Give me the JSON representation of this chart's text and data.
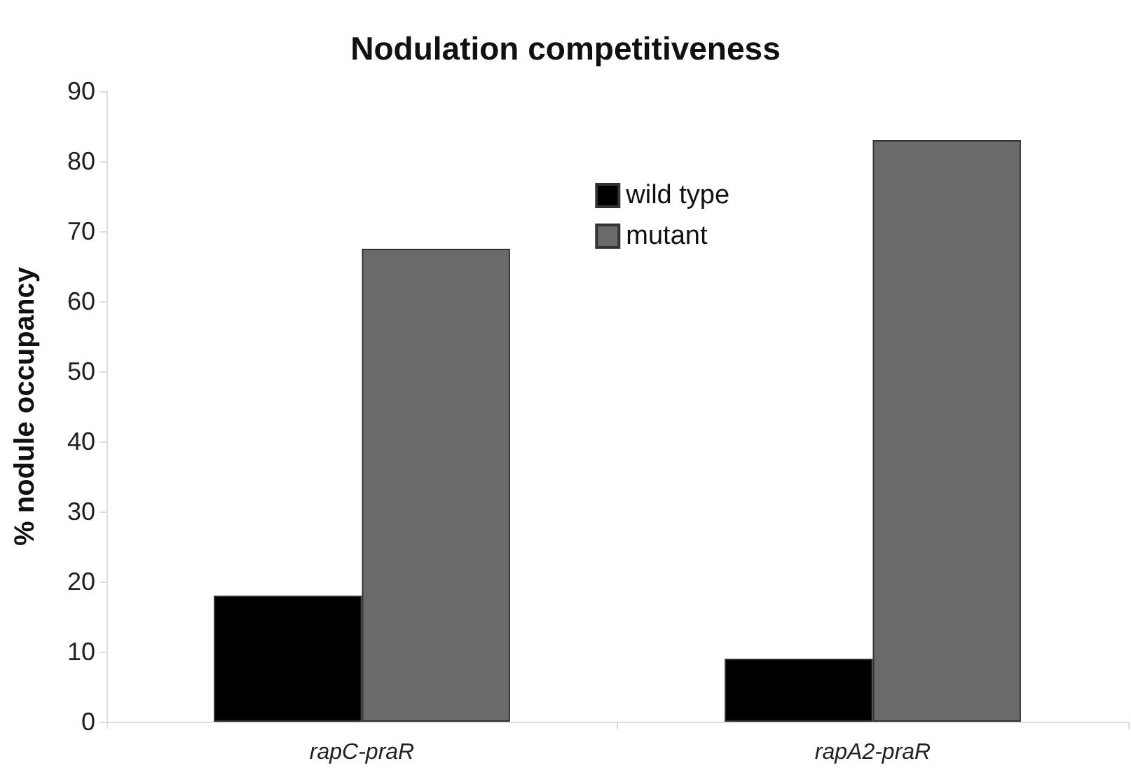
{
  "chart_data": {
    "type": "bar",
    "title": "Nodulation competitiveness",
    "ylabel": "% nodule occupancy",
    "categories": [
      "rapC-praR",
      "rapA2-praR"
    ],
    "series": [
      {
        "name": "wild type",
        "color": "#000000",
        "values": [
          18,
          9
        ]
      },
      {
        "name": "mutant",
        "color": "#6a6a6a",
        "values": [
          67.5,
          83
        ]
      }
    ],
    "ylim": [
      0,
      90
    ],
    "yticks": [
      0,
      10,
      20,
      30,
      40,
      50,
      60,
      70,
      80,
      90
    ],
    "grid": false,
    "legend": "top"
  }
}
